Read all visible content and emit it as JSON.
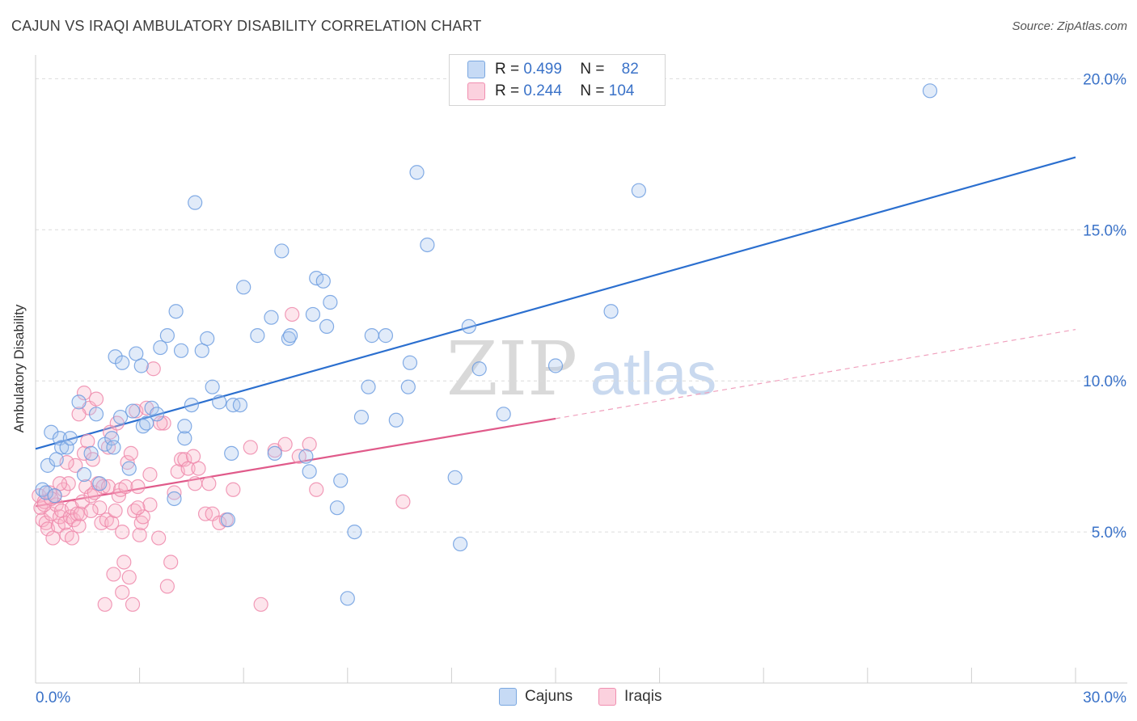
{
  "title": "CAJUN VS IRAQI AMBULATORY DISABILITY CORRELATION CHART",
  "source": "Source: ZipAtlas.com",
  "legend": {
    "rows": [
      {
        "r_label": "R =",
        "r_value": "0.499",
        "n_label": "N =",
        "n_value": "82"
      },
      {
        "r_label": "R =",
        "r_value": "0.244",
        "n_label": "N =",
        "n_value": "104"
      }
    ],
    "bottom": [
      "Cajuns",
      "Iraqis"
    ]
  },
  "chart_data": {
    "type": "scatter",
    "ylabel": "Ambulatory Disability",
    "xlim": [
      0,
      30
    ],
    "ylim": [
      0,
      21
    ],
    "x_tick_labels": [
      "0.0%",
      "30.0%"
    ],
    "y_ticks": [
      5,
      10,
      15,
      20
    ],
    "y_tick_labels": [
      "5.0%",
      "10.0%",
      "15.0%",
      "20.0%"
    ],
    "grid": true,
    "legend_position": "top-center",
    "watermark": {
      "zip": "ZIP",
      "atlas": "atlas"
    },
    "series": [
      {
        "name": "Cajuns",
        "color": "#6fa3e0",
        "line_color": "#2b6fcf",
        "trend": {
          "x0": 0,
          "y0": 7.75,
          "x1": 30,
          "y1": 17.4
        },
        "points": [
          [
            0.2,
            6.4
          ],
          [
            0.3,
            6.3
          ],
          [
            0.35,
            7.2
          ],
          [
            0.45,
            8.3
          ],
          [
            0.6,
            7.4
          ],
          [
            0.7,
            8.1
          ],
          [
            0.75,
            7.8
          ],
          [
            0.9,
            7.8
          ],
          [
            1.0,
            8.1
          ],
          [
            1.25,
            9.3
          ],
          [
            1.4,
            6.9
          ],
          [
            1.6,
            7.6
          ],
          [
            1.75,
            8.9
          ],
          [
            1.85,
            6.6
          ],
          [
            2.0,
            7.9
          ],
          [
            2.2,
            8.1
          ],
          [
            2.25,
            7.8
          ],
          [
            2.3,
            10.8
          ],
          [
            2.45,
            8.8
          ],
          [
            2.5,
            10.6
          ],
          [
            2.7,
            7.1
          ],
          [
            2.8,
            9.0
          ],
          [
            2.9,
            10.9
          ],
          [
            3.05,
            10.5
          ],
          [
            3.1,
            8.5
          ],
          [
            3.2,
            8.6
          ],
          [
            3.35,
            9.1
          ],
          [
            3.5,
            8.9
          ],
          [
            3.6,
            11.1
          ],
          [
            3.8,
            11.5
          ],
          [
            4.0,
            6.1
          ],
          [
            4.05,
            12.3
          ],
          [
            4.2,
            11.0
          ],
          [
            4.3,
            8.1
          ],
          [
            4.3,
            8.5
          ],
          [
            4.5,
            9.2
          ],
          [
            4.6,
            15.9
          ],
          [
            4.8,
            11.0
          ],
          [
            4.95,
            11.4
          ],
          [
            5.1,
            9.8
          ],
          [
            5.3,
            9.3
          ],
          [
            5.55,
            5.4
          ],
          [
            5.65,
            7.6
          ],
          [
            5.7,
            9.2
          ],
          [
            5.9,
            9.2
          ],
          [
            6.0,
            13.1
          ],
          [
            6.4,
            11.5
          ],
          [
            6.8,
            12.1
          ],
          [
            6.9,
            7.6
          ],
          [
            7.1,
            14.3
          ],
          [
            7.3,
            11.4
          ],
          [
            7.35,
            11.5
          ],
          [
            7.8,
            7.5
          ],
          [
            7.9,
            7.0
          ],
          [
            8.0,
            12.2
          ],
          [
            8.1,
            13.4
          ],
          [
            8.3,
            13.3
          ],
          [
            8.4,
            11.8
          ],
          [
            8.5,
            12.6
          ],
          [
            8.7,
            5.8
          ],
          [
            8.8,
            6.7
          ],
          [
            9.0,
            2.8
          ],
          [
            9.2,
            5.0
          ],
          [
            9.4,
            8.8
          ],
          [
            9.6,
            9.8
          ],
          [
            9.7,
            11.5
          ],
          [
            10.1,
            11.5
          ],
          [
            10.4,
            8.7
          ],
          [
            10.75,
            9.8
          ],
          [
            10.8,
            10.6
          ],
          [
            11.0,
            16.9
          ],
          [
            11.3,
            14.5
          ],
          [
            12.1,
            6.8
          ],
          [
            12.25,
            4.6
          ],
          [
            12.5,
            11.8
          ],
          [
            12.8,
            10.4
          ],
          [
            13.5,
            8.9
          ],
          [
            15.0,
            10.5
          ],
          [
            16.6,
            12.3
          ],
          [
            17.4,
            16.3
          ],
          [
            25.8,
            19.6
          ],
          [
            0.55,
            6.2
          ]
        ]
      },
      {
        "name": "Iraqis",
        "color": "#f48fb1",
        "line_color": "#e05a8a",
        "trend": {
          "x0": 0,
          "y0": 5.85,
          "x1": 15,
          "y1": 8.75
        },
        "trend_dashed": {
          "x0": 15,
          "y0": 8.75,
          "x1": 30,
          "y1": 11.7
        },
        "points": [
          [
            0.1,
            6.2
          ],
          [
            0.15,
            5.8
          ],
          [
            0.2,
            5.4
          ],
          [
            0.25,
            6.0
          ],
          [
            0.3,
            5.3
          ],
          [
            0.35,
            5.1
          ],
          [
            0.4,
            6.3
          ],
          [
            0.45,
            5.6
          ],
          [
            0.5,
            4.8
          ],
          [
            0.55,
            6.2
          ],
          [
            0.6,
            5.9
          ],
          [
            0.65,
            5.2
          ],
          [
            0.7,
            5.5
          ],
          [
            0.75,
            5.7
          ],
          [
            0.8,
            6.4
          ],
          [
            0.85,
            5.3
          ],
          [
            0.9,
            4.9
          ],
          [
            0.95,
            6.6
          ],
          [
            1.0,
            5.5
          ],
          [
            1.05,
            5.8
          ],
          [
            1.1,
            5.4
          ],
          [
            1.15,
            7.2
          ],
          [
            1.2,
            5.6
          ],
          [
            1.25,
            5.2
          ],
          [
            1.3,
            5.6
          ],
          [
            1.35,
            6.0
          ],
          [
            1.4,
            7.6
          ],
          [
            1.45,
            6.5
          ],
          [
            1.5,
            8.0
          ],
          [
            1.55,
            9.1
          ],
          [
            1.6,
            6.2
          ],
          [
            1.65,
            7.4
          ],
          [
            1.7,
            6.3
          ],
          [
            1.75,
            9.4
          ],
          [
            1.8,
            6.6
          ],
          [
            1.85,
            5.8
          ],
          [
            1.9,
            5.3
          ],
          [
            1.95,
            6.5
          ],
          [
            2.0,
            2.6
          ],
          [
            2.05,
            5.4
          ],
          [
            2.1,
            6.5
          ],
          [
            2.15,
            8.3
          ],
          [
            2.2,
            5.3
          ],
          [
            2.25,
            3.6
          ],
          [
            2.3,
            5.7
          ],
          [
            2.35,
            8.6
          ],
          [
            2.4,
            6.2
          ],
          [
            2.45,
            6.4
          ],
          [
            2.5,
            3.0
          ],
          [
            2.55,
            4.0
          ],
          [
            2.6,
            6.5
          ],
          [
            2.65,
            7.3
          ],
          [
            2.7,
            3.5
          ],
          [
            2.75,
            7.6
          ],
          [
            2.8,
            2.6
          ],
          [
            2.85,
            5.7
          ],
          [
            2.9,
            9.0
          ],
          [
            2.95,
            6.5
          ],
          [
            3.0,
            4.9
          ],
          [
            3.05,
            5.3
          ],
          [
            3.1,
            5.5
          ],
          [
            3.2,
            9.1
          ],
          [
            3.3,
            6.9
          ],
          [
            3.4,
            10.4
          ],
          [
            3.55,
            4.8
          ],
          [
            3.7,
            8.6
          ],
          [
            3.8,
            3.2
          ],
          [
            3.9,
            4.0
          ],
          [
            4.0,
            6.3
          ],
          [
            4.1,
            7.0
          ],
          [
            4.2,
            7.4
          ],
          [
            4.3,
            7.4
          ],
          [
            4.4,
            7.1
          ],
          [
            4.6,
            6.6
          ],
          [
            4.7,
            7.1
          ],
          [
            4.9,
            5.6
          ],
          [
            5.1,
            5.6
          ],
          [
            5.3,
            5.3
          ],
          [
            5.5,
            5.4
          ],
          [
            5.7,
            6.4
          ],
          [
            6.2,
            7.8
          ],
          [
            6.5,
            2.6
          ],
          [
            6.9,
            7.7
          ],
          [
            7.2,
            7.9
          ],
          [
            7.4,
            12.2
          ],
          [
            7.6,
            7.5
          ],
          [
            7.9,
            7.9
          ],
          [
            8.1,
            6.4
          ],
          [
            10.6,
            6.0
          ],
          [
            1.25,
            8.9
          ],
          [
            0.9,
            7.3
          ],
          [
            1.6,
            5.7
          ],
          [
            2.1,
            7.8
          ],
          [
            3.6,
            8.6
          ],
          [
            4.55,
            7.5
          ],
          [
            0.25,
            5.9
          ],
          [
            0.45,
            6.1
          ],
          [
            0.7,
            6.6
          ],
          [
            1.05,
            4.8
          ],
          [
            2.5,
            5.0
          ],
          [
            3.3,
            5.9
          ],
          [
            5.0,
            6.6
          ],
          [
            1.4,
            9.6
          ],
          [
            2.95,
            5.8
          ]
        ]
      }
    ]
  }
}
